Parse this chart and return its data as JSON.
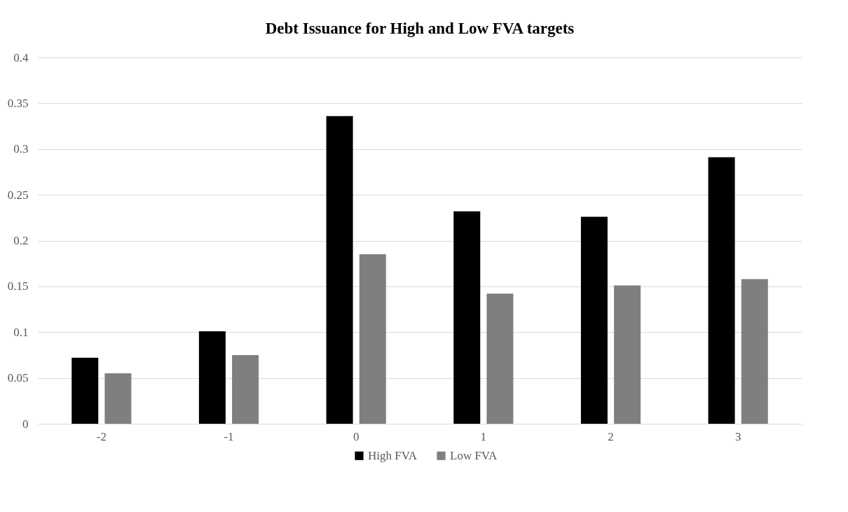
{
  "chart_data": {
    "type": "bar",
    "title": "Debt Issuance for High and Low FVA targets",
    "categories": [
      "-2",
      "-1",
      "0",
      "1",
      "2",
      "3"
    ],
    "series": [
      {
        "name": "High FVA",
        "color": "#000000",
        "values": [
          0.072,
          0.101,
          0.336,
          0.232,
          0.226,
          0.291
        ]
      },
      {
        "name": "Low FVA",
        "color": "#7f7f7f",
        "values": [
          0.055,
          0.075,
          0.185,
          0.142,
          0.151,
          0.158
        ]
      }
    ],
    "ylim": [
      0,
      0.4
    ],
    "yticks": [
      0,
      0.05,
      0.1,
      0.15,
      0.2,
      0.25,
      0.3,
      0.35,
      0.4
    ],
    "grid": "y",
    "legend": "bottom"
  }
}
